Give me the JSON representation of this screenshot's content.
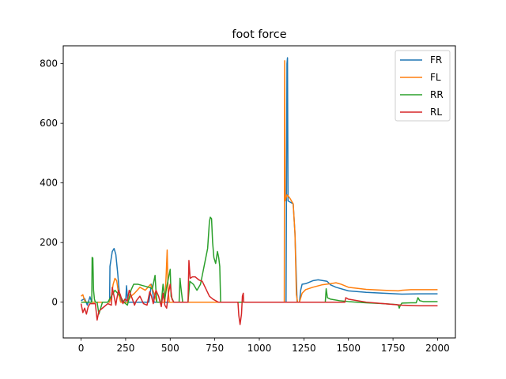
{
  "chart_data": {
    "type": "line",
    "title": "foot force",
    "xlabel": "",
    "ylabel": "",
    "xlim": [
      -100,
      2100
    ],
    "ylim": [
      -120,
      860
    ],
    "xticks": [
      0,
      250,
      500,
      750,
      1000,
      1250,
      1500,
      1750,
      2000
    ],
    "yticks": [
      0,
      200,
      400,
      600,
      800
    ],
    "grid": false,
    "legend": "top-right",
    "colors": {
      "FR": "#1f77b4",
      "FL": "#ff7f0e",
      "RR": "#2ca02c",
      "RL": "#d62728"
    },
    "series": [
      {
        "name": "FR",
        "points": [
          [
            0,
            5
          ],
          [
            20,
            12
          ],
          [
            35,
            -10
          ],
          [
            50,
            18
          ],
          [
            60,
            0
          ],
          [
            150,
            0
          ],
          [
            160,
            0
          ],
          [
            162,
            120
          ],
          [
            175,
            170
          ],
          [
            185,
            180
          ],
          [
            195,
            160
          ],
          [
            205,
            100
          ],
          [
            215,
            30
          ],
          [
            225,
            0
          ],
          [
            250,
            0
          ],
          [
            255,
            55
          ],
          [
            262,
            0
          ],
          [
            380,
            0
          ],
          [
            395,
            60
          ],
          [
            410,
            0
          ],
          [
            1130,
            0
          ],
          [
            1150,
            0
          ],
          [
            1155,
            800
          ],
          [
            1158,
            820
          ],
          [
            1161,
            340
          ],
          [
            1175,
            335
          ],
          [
            1190,
            330
          ],
          [
            1200,
            230
          ],
          [
            1212,
            0
          ],
          [
            1225,
            0
          ],
          [
            1232,
            40
          ],
          [
            1240,
            60
          ],
          [
            1260,
            62
          ],
          [
            1300,
            72
          ],
          [
            1330,
            75
          ],
          [
            1360,
            72
          ],
          [
            1380,
            70
          ],
          [
            1400,
            58
          ],
          [
            1430,
            50
          ],
          [
            1500,
            38
          ],
          [
            1600,
            33
          ],
          [
            1700,
            30
          ],
          [
            1800,
            27
          ],
          [
            1900,
            28
          ],
          [
            2000,
            28
          ]
        ]
      },
      {
        "name": "FL",
        "points": [
          [
            0,
            20
          ],
          [
            10,
            25
          ],
          [
            20,
            5
          ],
          [
            30,
            0
          ],
          [
            160,
            0
          ],
          [
            170,
            20
          ],
          [
            180,
            60
          ],
          [
            190,
            80
          ],
          [
            200,
            72
          ],
          [
            210,
            30
          ],
          [
            222,
            0
          ],
          [
            260,
            0
          ],
          [
            280,
            20
          ],
          [
            300,
            30
          ],
          [
            330,
            50
          ],
          [
            360,
            40
          ],
          [
            390,
            60
          ],
          [
            410,
            30
          ],
          [
            425,
            0
          ],
          [
            470,
            0
          ],
          [
            478,
            100
          ],
          [
            483,
            175
          ],
          [
            488,
            40
          ],
          [
            495,
            0
          ],
          [
            1125,
            0
          ],
          [
            1140,
            0
          ],
          [
            1142,
            810
          ],
          [
            1145,
            340
          ],
          [
            1155,
            360
          ],
          [
            1170,
            350
          ],
          [
            1190,
            330
          ],
          [
            1200,
            230
          ],
          [
            1208,
            25
          ],
          [
            1215,
            0
          ],
          [
            1225,
            0
          ],
          [
            1240,
            30
          ],
          [
            1260,
            42
          ],
          [
            1300,
            50
          ],
          [
            1350,
            58
          ],
          [
            1400,
            62
          ],
          [
            1430,
            65
          ],
          [
            1460,
            60
          ],
          [
            1500,
            50
          ],
          [
            1600,
            43
          ],
          [
            1700,
            40
          ],
          [
            1780,
            38
          ],
          [
            1800,
            40
          ],
          [
            1850,
            42
          ],
          [
            2000,
            42
          ]
        ]
      },
      {
        "name": "RR",
        "points": [
          [
            0,
            0
          ],
          [
            60,
            0
          ],
          [
            62,
            150
          ],
          [
            66,
            148
          ],
          [
            70,
            40
          ],
          [
            75,
            10
          ],
          [
            80,
            0
          ],
          [
            90,
            0
          ],
          [
            100,
            -40
          ],
          [
            110,
            -20
          ],
          [
            120,
            0
          ],
          [
            150,
            0
          ],
          [
            160,
            10
          ],
          [
            190,
            40
          ],
          [
            220,
            20
          ],
          [
            240,
            0
          ],
          [
            260,
            -10
          ],
          [
            280,
            40
          ],
          [
            295,
            60
          ],
          [
            320,
            60
          ],
          [
            350,
            55
          ],
          [
            380,
            50
          ],
          [
            400,
            45
          ],
          [
            415,
            90
          ],
          [
            420,
            40
          ],
          [
            425,
            0
          ],
          [
            450,
            0
          ],
          [
            460,
            60
          ],
          [
            470,
            10
          ],
          [
            480,
            50
          ],
          [
            490,
            80
          ],
          [
            500,
            110
          ],
          [
            505,
            20
          ],
          [
            520,
            0
          ],
          [
            550,
            0
          ],
          [
            555,
            80
          ],
          [
            560,
            50
          ],
          [
            570,
            0
          ],
          [
            600,
            0
          ],
          [
            610,
            70
          ],
          [
            630,
            60
          ],
          [
            650,
            40
          ],
          [
            670,
            60
          ],
          [
            690,
            120
          ],
          [
            700,
            150
          ],
          [
            710,
            180
          ],
          [
            720,
            270
          ],
          [
            725,
            285
          ],
          [
            732,
            280
          ],
          [
            738,
            200
          ],
          [
            745,
            150
          ],
          [
            755,
            130
          ],
          [
            765,
            170
          ],
          [
            772,
            150
          ],
          [
            778,
            120
          ],
          [
            783,
            0
          ],
          [
            1370,
            0
          ],
          [
            1375,
            45
          ],
          [
            1382,
            15
          ],
          [
            1400,
            10
          ],
          [
            1450,
            5
          ],
          [
            1500,
            2
          ],
          [
            1600,
            -2
          ],
          [
            1700,
            -5
          ],
          [
            1770,
            -8
          ],
          [
            1780,
            -10
          ],
          [
            1785,
            -20
          ],
          [
            1790,
            -12
          ],
          [
            1800,
            -3
          ],
          [
            1850,
            -2
          ],
          [
            1880,
            -2
          ],
          [
            1890,
            15
          ],
          [
            1900,
            5
          ],
          [
            1920,
            2
          ],
          [
            2000,
            2
          ]
        ]
      },
      {
        "name": "RL",
        "points": [
          [
            0,
            -5
          ],
          [
            10,
            -35
          ],
          [
            20,
            -20
          ],
          [
            30,
            -40
          ],
          [
            40,
            -15
          ],
          [
            50,
            -5
          ],
          [
            80,
            -5
          ],
          [
            90,
            -60
          ],
          [
            100,
            -30
          ],
          [
            120,
            -20
          ],
          [
            150,
            -5
          ],
          [
            170,
            -10
          ],
          [
            175,
            50
          ],
          [
            185,
            20
          ],
          [
            195,
            -10
          ],
          [
            200,
            10
          ],
          [
            210,
            40
          ],
          [
            220,
            25
          ],
          [
            235,
            -5
          ],
          [
            245,
            10
          ],
          [
            260,
            5
          ],
          [
            270,
            40
          ],
          [
            285,
            15
          ],
          [
            300,
            -10
          ],
          [
            310,
            5
          ],
          [
            330,
            20
          ],
          [
            350,
            -5
          ],
          [
            370,
            -10
          ],
          [
            385,
            35
          ],
          [
            395,
            20
          ],
          [
            405,
            -5
          ],
          [
            420,
            40
          ],
          [
            435,
            20
          ],
          [
            450,
            -15
          ],
          [
            460,
            30
          ],
          [
            470,
            -10
          ],
          [
            480,
            -20
          ],
          [
            490,
            30
          ],
          [
            500,
            60
          ],
          [
            510,
            10
          ],
          [
            520,
            0
          ],
          [
            600,
            0
          ],
          [
            605,
            140
          ],
          [
            612,
            80
          ],
          [
            625,
            85
          ],
          [
            640,
            85
          ],
          [
            660,
            75
          ],
          [
            680,
            70
          ],
          [
            700,
            45
          ],
          [
            720,
            20
          ],
          [
            740,
            10
          ],
          [
            770,
            0
          ],
          [
            880,
            0
          ],
          [
            885,
            -45
          ],
          [
            892,
            -75
          ],
          [
            900,
            -40
          ],
          [
            905,
            20
          ],
          [
            910,
            30
          ],
          [
            912,
            0
          ],
          [
            1480,
            0
          ],
          [
            1485,
            15
          ],
          [
            1500,
            10
          ],
          [
            1600,
            0
          ],
          [
            1700,
            -5
          ],
          [
            1800,
            -10
          ],
          [
            1900,
            -12
          ],
          [
            2000,
            -12
          ]
        ]
      }
    ]
  }
}
